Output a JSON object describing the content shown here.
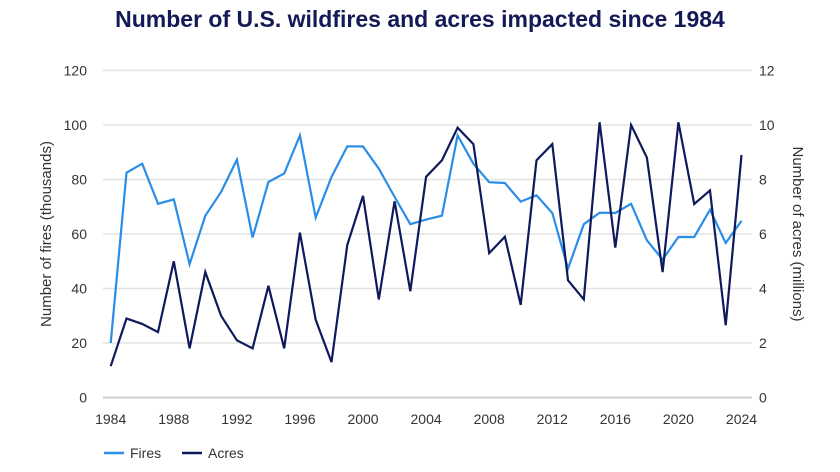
{
  "chart_data": {
    "type": "line",
    "title": "Number of U.S. wildfires and acres impacted since 1984",
    "xlabel": "",
    "ylabel_left": "Number of fires (thousands)",
    "ylabel_right": "Number of acres (millions)",
    "ylim_left": [
      0,
      120
    ],
    "ylim_right": [
      0,
      12
    ],
    "yticks_left": [
      0,
      20,
      40,
      60,
      80,
      100,
      120
    ],
    "yticks_right": [
      0,
      2,
      4,
      6,
      8,
      10,
      12
    ],
    "xticks": [
      1984,
      1988,
      1992,
      1996,
      2000,
      2004,
      2008,
      2012,
      2016,
      2020,
      2024
    ],
    "grid": true,
    "legend": "bottom-left",
    "x": [
      1984,
      1985,
      1986,
      1987,
      1988,
      1989,
      1990,
      1991,
      1992,
      1993,
      1994,
      1995,
      1996,
      1997,
      1998,
      1999,
      2000,
      2001,
      2002,
      2003,
      2004,
      2005,
      2006,
      2007,
      2008,
      2009,
      2010,
      2011,
      2012,
      2013,
      2014,
      2015,
      2016,
      2017,
      2018,
      2019,
      2020,
      2021,
      2022,
      2023,
      2024
    ],
    "series": [
      {
        "name": "Fires",
        "axis": "left",
        "color": "#2a8de6",
        "values": [
          20.0,
          82.5,
          85.8,
          71.1,
          72.7,
          48.9,
          66.7,
          75.4,
          87.3,
          58.7,
          79.1,
          82.2,
          96.2,
          66.0,
          80.9,
          92.2,
          92.1,
          84.0,
          73.6,
          63.6,
          65.3,
          66.7,
          96.2,
          85.8,
          79.0,
          78.7,
          71.9,
          74.2,
          67.7,
          47.3,
          63.6,
          67.8,
          67.7,
          71.1,
          57.7,
          50.6,
          58.9,
          58.9,
          68.9,
          56.7,
          64.8
        ]
      },
      {
        "name": "Acres",
        "axis": "right",
        "color": "#0e1a5c",
        "values": [
          1.15,
          2.9,
          2.7,
          2.4,
          5.0,
          1.8,
          4.6,
          3.0,
          2.1,
          1.8,
          4.1,
          1.8,
          6.05,
          2.85,
          1.3,
          5.6,
          7.4,
          3.6,
          7.2,
          3.9,
          8.1,
          8.7,
          9.9,
          9.3,
          5.3,
          5.9,
          3.4,
          8.7,
          9.3,
          4.3,
          3.6,
          10.1,
          5.5,
          10.0,
          8.8,
          4.6,
          10.1,
          7.1,
          7.6,
          2.65,
          8.9
        ]
      }
    ]
  }
}
